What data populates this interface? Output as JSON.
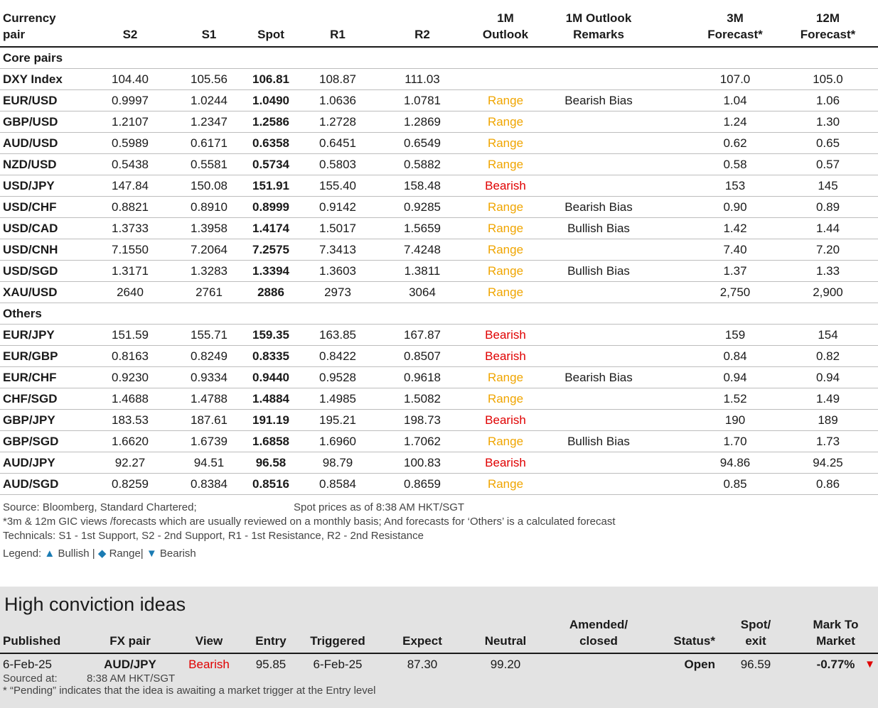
{
  "headers": {
    "pair_line1": "Currency",
    "pair_line2": "pair",
    "s2": "S2",
    "s1": "S1",
    "spot": "Spot",
    "r1": "R1",
    "r2": "R2",
    "outlook_line1": "1M",
    "outlook_line2": "Outlook",
    "remarks_line1": "1M Outlook",
    "remarks_line2": "Remarks",
    "f3m_line1": "3M",
    "f3m_line2": "Forecast*",
    "f12m_line1": "12M",
    "f12m_line2": "Forecast*"
  },
  "sections": {
    "core": {
      "label": "Core pairs",
      "rows": [
        {
          "pair": "DXY Index",
          "s2": "104.40",
          "s1": "105.56",
          "spot": "106.81",
          "r1": "108.87",
          "r2": "111.03",
          "outlook": "",
          "outlook_type": "none",
          "remarks": "",
          "f3m": "107.0",
          "f12m": "105.0"
        },
        {
          "pair": "EUR/USD",
          "s2": "0.9997",
          "s1": "1.0244",
          "spot": "1.0490",
          "r1": "1.0636",
          "r2": "1.0781",
          "outlook": "Range",
          "outlook_type": "range",
          "remarks": "Bearish Bias",
          "f3m": "1.04",
          "f12m": "1.06"
        },
        {
          "pair": "GBP/USD",
          "s2": "1.2107",
          "s1": "1.2347",
          "spot": "1.2586",
          "r1": "1.2728",
          "r2": "1.2869",
          "outlook": "Range",
          "outlook_type": "range",
          "remarks": "",
          "f3m": "1.24",
          "f12m": "1.30"
        },
        {
          "pair": "AUD/USD",
          "s2": "0.5989",
          "s1": "0.6171",
          "spot": "0.6358",
          "r1": "0.6451",
          "r2": "0.6549",
          "outlook": "Range",
          "outlook_type": "range",
          "remarks": "",
          "f3m": "0.62",
          "f12m": "0.65"
        },
        {
          "pair": "NZD/USD",
          "s2": "0.5438",
          "s1": "0.5581",
          "spot": "0.5734",
          "r1": "0.5803",
          "r2": "0.5882",
          "outlook": "Range",
          "outlook_type": "range",
          "remarks": "",
          "f3m": "0.58",
          "f12m": "0.57"
        },
        {
          "pair": "USD/JPY",
          "s2": "147.84",
          "s1": "150.08",
          "spot": "151.91",
          "r1": "155.40",
          "r2": "158.48",
          "outlook": "Bearish",
          "outlook_type": "bearish",
          "remarks": "",
          "f3m": "153",
          "f12m": "145"
        },
        {
          "pair": "USD/CHF",
          "s2": "0.8821",
          "s1": "0.8910",
          "spot": "0.8999",
          "r1": "0.9142",
          "r2": "0.9285",
          "outlook": "Range",
          "outlook_type": "range",
          "remarks": "Bearish Bias",
          "f3m": "0.90",
          "f12m": "0.89"
        },
        {
          "pair": "USD/CAD",
          "s2": "1.3733",
          "s1": "1.3958",
          "spot": "1.4174",
          "r1": "1.5017",
          "r2": "1.5659",
          "outlook": "Range",
          "outlook_type": "range",
          "remarks": "Bullish Bias",
          "f3m": "1.42",
          "f12m": "1.44"
        },
        {
          "pair": "USD/CNH",
          "s2": "7.1550",
          "s1": "7.2064",
          "spot": "7.2575",
          "r1": "7.3413",
          "r2": "7.4248",
          "outlook": "Range",
          "outlook_type": "range",
          "remarks": "",
          "f3m": "7.40",
          "f12m": "7.20"
        },
        {
          "pair": "USD/SGD",
          "s2": "1.3171",
          "s1": "1.3283",
          "spot": "1.3394",
          "r1": "1.3603",
          "r2": "1.3811",
          "outlook": "Range",
          "outlook_type": "range",
          "remarks": "Bullish Bias",
          "f3m": "1.37",
          "f12m": "1.33"
        },
        {
          "pair": "XAU/USD",
          "s2": "2640",
          "s1": "2761",
          "spot": "2886",
          "r1": "2973",
          "r2": "3064",
          "outlook": "Range",
          "outlook_type": "range",
          "remarks": "",
          "f3m": "2,750",
          "f12m": "2,900"
        }
      ]
    },
    "others": {
      "label": "Others",
      "rows": [
        {
          "pair": "EUR/JPY",
          "s2": "151.59",
          "s1": "155.71",
          "spot": "159.35",
          "r1": "163.85",
          "r2": "167.87",
          "outlook": "Bearish",
          "outlook_type": "bearish",
          "remarks": "",
          "f3m": "159",
          "f12m": "154"
        },
        {
          "pair": "EUR/GBP",
          "s2": "0.8163",
          "s1": "0.8249",
          "spot": "0.8335",
          "r1": "0.8422",
          "r2": "0.8507",
          "outlook": "Bearish",
          "outlook_type": "bearish",
          "remarks": "",
          "f3m": "0.84",
          "f12m": "0.82"
        },
        {
          "pair": "EUR/CHF",
          "s2": "0.9230",
          "s1": "0.9334",
          "spot": "0.9440",
          "r1": "0.9528",
          "r2": "0.9618",
          "outlook": "Range",
          "outlook_type": "range",
          "remarks": "Bearish Bias",
          "f3m": "0.94",
          "f12m": "0.94"
        },
        {
          "pair": "CHF/SGD",
          "s2": "1.4688",
          "s1": "1.4788",
          "spot": "1.4884",
          "r1": "1.4985",
          "r2": "1.5082",
          "outlook": "Range",
          "outlook_type": "range",
          "remarks": "",
          "f3m": "1.52",
          "f12m": "1.49"
        },
        {
          "pair": "GBP/JPY",
          "s2": "183.53",
          "s1": "187.61",
          "spot": "191.19",
          "r1": "195.21",
          "r2": "198.73",
          "outlook": "Bearish",
          "outlook_type": "bearish",
          "remarks": "",
          "f3m": "190",
          "f12m": "189"
        },
        {
          "pair": "GBP/SGD",
          "s2": "1.6620",
          "s1": "1.6739",
          "spot": "1.6858",
          "r1": "1.6960",
          "r2": "1.7062",
          "outlook": "Range",
          "outlook_type": "range",
          "remarks": "Bullish Bias",
          "f3m": "1.70",
          "f12m": "1.73"
        },
        {
          "pair": "AUD/JPY",
          "s2": "92.27",
          "s1": "94.51",
          "spot": "96.58",
          "r1": "98.79",
          "r2": "100.83",
          "outlook": "Bearish",
          "outlook_type": "bearish",
          "remarks": "",
          "f3m": "94.86",
          "f12m": "94.25"
        },
        {
          "pair": "AUD/SGD",
          "s2": "0.8259",
          "s1": "0.8384",
          "spot": "0.8516",
          "r1": "0.8584",
          "r2": "0.8659",
          "outlook": "Range",
          "outlook_type": "range",
          "remarks": "",
          "f3m": "0.85",
          "f12m": "0.86"
        }
      ]
    }
  },
  "notes": {
    "source": "Source: Bloomberg, Standard Chartered;",
    "spot_time": "Spot prices as of  8:38 AM HKT/SGT",
    "forecast_note": "*3m & 12m GIC views /forecasts which are usually reviewed on a monthly basis; And forecasts for ‘Others’ is a calculated forecast",
    "technicals": "Technicals: S1 - 1st Support, S2 - 2nd Support, R1 - 1st Resistance, R2 - 2nd Resistance",
    "legend_prefix": "Legend:",
    "legend_bullish": "Bullish",
    "legend_range": "Range",
    "legend_bearish": "Bearish",
    "legend_sep": "|"
  },
  "high_conviction": {
    "title": "High conviction ideas",
    "headers": {
      "published": "Published",
      "fx_pair": "FX pair",
      "view": "View",
      "entry": "Entry",
      "triggered": "Triggered",
      "expect": "Expect",
      "neutral": "Neutral",
      "amended_line1": "Amended/",
      "amended_line2": "closed",
      "status": "Status*",
      "spot_line1": "Spot/",
      "spot_line2": "exit",
      "mtm_line1": "Mark To",
      "mtm_line2": "Market"
    },
    "rows": [
      {
        "published": "6-Feb-25",
        "fx_pair": "AUD/JPY",
        "view": "Bearish",
        "entry": "95.85",
        "triggered": "6-Feb-25",
        "expect": "87.30",
        "neutral": "99.20",
        "amended": "",
        "status": "Open",
        "spot_exit": "96.59",
        "mtm": "-0.77%"
      }
    ],
    "sourced_label": "Sourced at:",
    "sourced_time": "8:38 AM HKT/SGT",
    "pending_note": "* “Pending” indicates that the idea is awaiting a market trigger at the Entry level",
    "colors": {
      "bearish": "#e00000",
      "range": "#f0a500",
      "panel_bg": "#e3e3e3"
    }
  }
}
